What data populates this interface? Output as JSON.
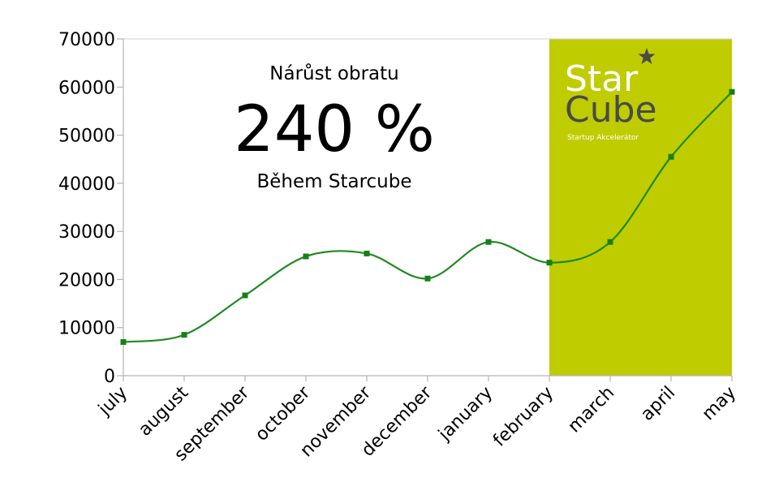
{
  "chart_data": {
    "type": "line",
    "categories": [
      "july",
      "august",
      "september",
      "october",
      "november",
      "december",
      "january",
      "february",
      "march",
      "april",
      "may"
    ],
    "series": [
      {
        "values": [
          7000,
          8500,
          16700,
          24800,
          25400,
          20200,
          27800,
          23500,
          27800,
          45500,
          59000
        ]
      }
    ],
    "ylim": [
      0,
      70000
    ],
    "yticks": [
      "0",
      "10000",
      "20000",
      "30000",
      "40000",
      "50000",
      "60000",
      "70000"
    ],
    "grid": false,
    "highlight": {
      "from": "february",
      "to": "may"
    },
    "colors": {
      "line": "#1e8a1e",
      "marker": "#168016",
      "highlight": "#bfcc00",
      "axis": "#b3b3b3"
    }
  },
  "annotation": {
    "subtitle": "Nárůst obratu",
    "value": "240 %",
    "caption": "Během Starcube"
  },
  "logo": {
    "line1": "Star",
    "line2": "Cube",
    "tagline": "Startup Akcelerátor",
    "icon": "star-icon"
  }
}
